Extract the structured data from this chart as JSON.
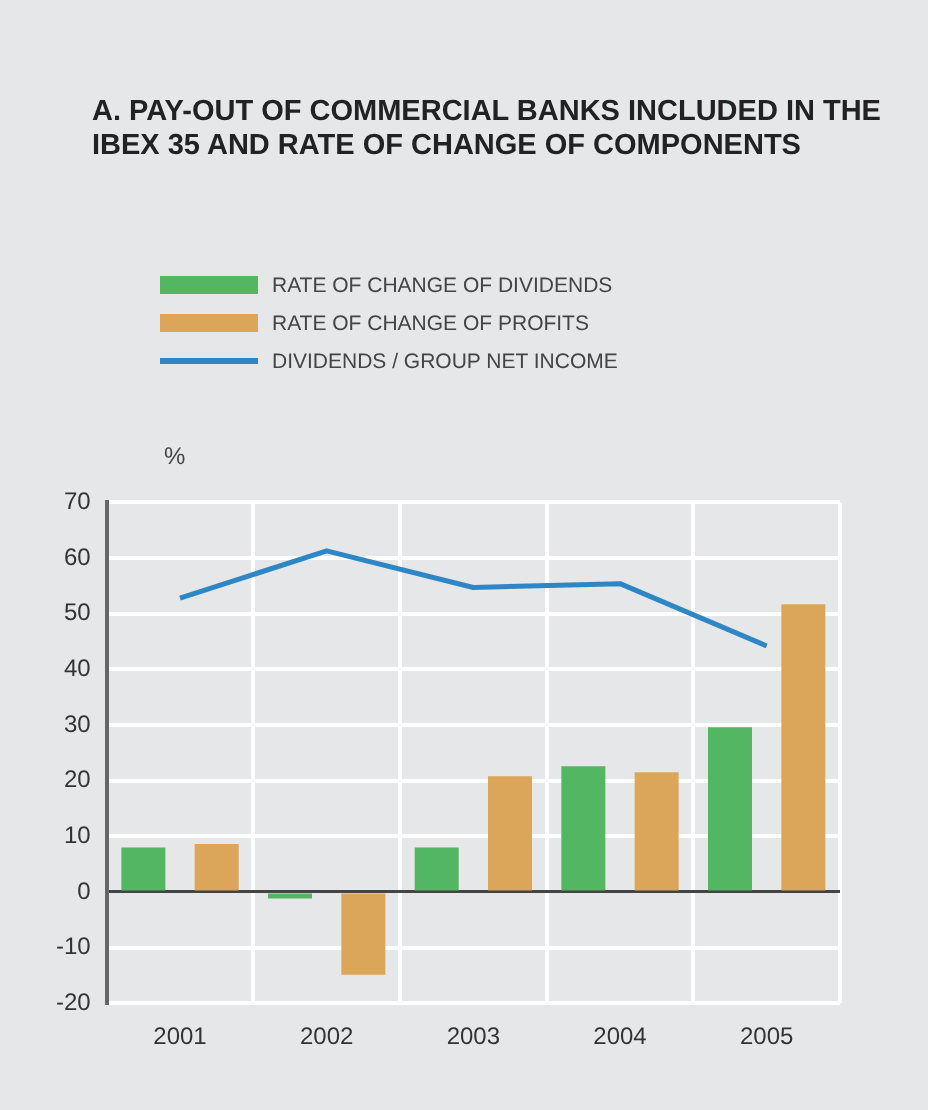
{
  "chart_data": {
    "type": "bar",
    "title": "A.   PAY-OUT OF COMMERCIAL BANKS INCLUDED IN THE IBEX 35 AND RATE OF CHANGE OF COMPONENTS",
    "ylabel": "%",
    "categories": [
      "2001",
      "2002",
      "2003",
      "2004",
      "2005"
    ],
    "series": [
      {
        "name": "RATE OF CHANGE OF DIVIDENDS",
        "color": "#52b663",
        "values": [
          8,
          -1.2,
          8,
          22.6,
          29.6
        ]
      },
      {
        "name": "RATE OF CHANGE OF PROFITS",
        "color": "#dba55a",
        "values": [
          8.6,
          -14.9,
          20.8,
          21.5,
          51.7
        ]
      },
      {
        "name": "DIVIDENDS / GROUP NET INCOME",
        "type": "line",
        "color": "#2f86c5",
        "values": [
          52.8,
          61.3,
          54.7,
          55.4,
          44.2
        ]
      }
    ],
    "ylim": [
      -20,
      70
    ],
    "yticks": [
      -20,
      -10,
      0,
      10,
      20,
      30,
      40,
      50,
      60,
      70
    ],
    "grid": true,
    "legend": "top left",
    "marker": "none"
  }
}
